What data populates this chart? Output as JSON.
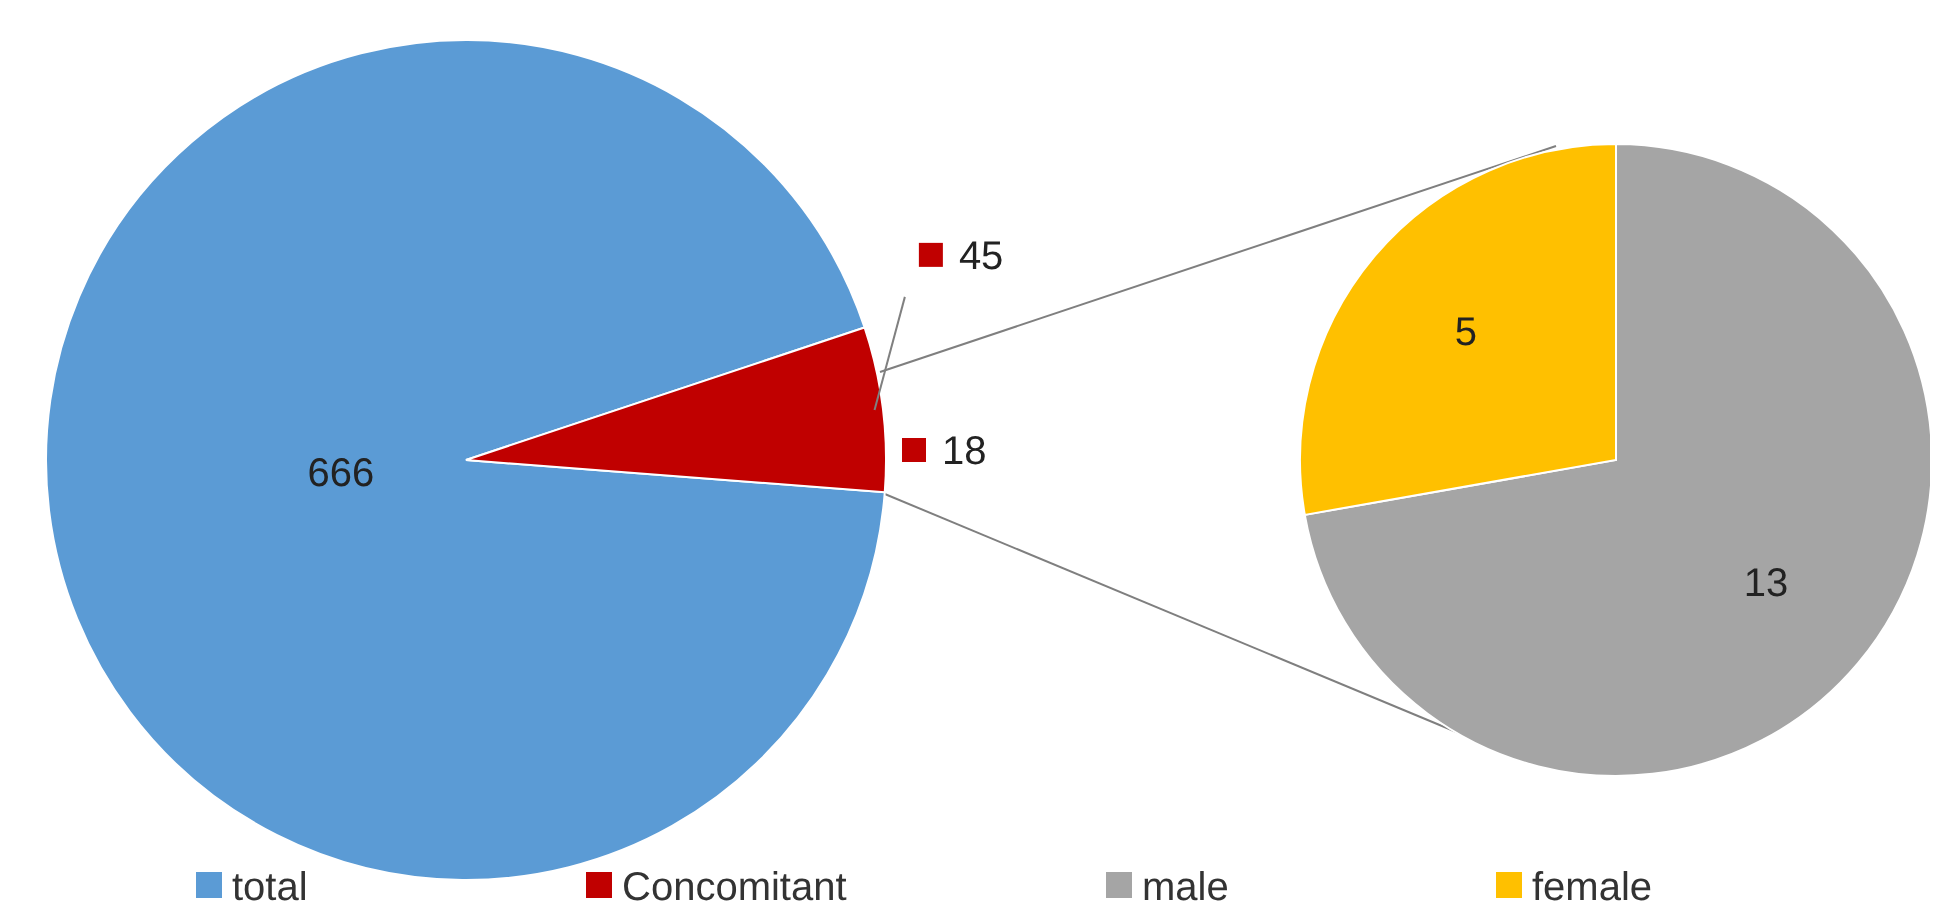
{
  "chart_data": [
    {
      "type": "pie",
      "categories": [
        "total",
        "Concomitant"
      ],
      "values": [
        666,
        45
      ],
      "colors": [
        "#5b9bd5",
        "#c00000"
      ],
      "data_labels": true,
      "legend": "bottom",
      "annotations": [
        "18"
      ]
    },
    {
      "type": "pie",
      "categories": [
        "male",
        "female"
      ],
      "values": [
        13,
        5
      ],
      "colors": [
        "#a5a5a5",
        "#ffc000"
      ],
      "data_labels": true,
      "legend": "bottom"
    }
  ]
}
